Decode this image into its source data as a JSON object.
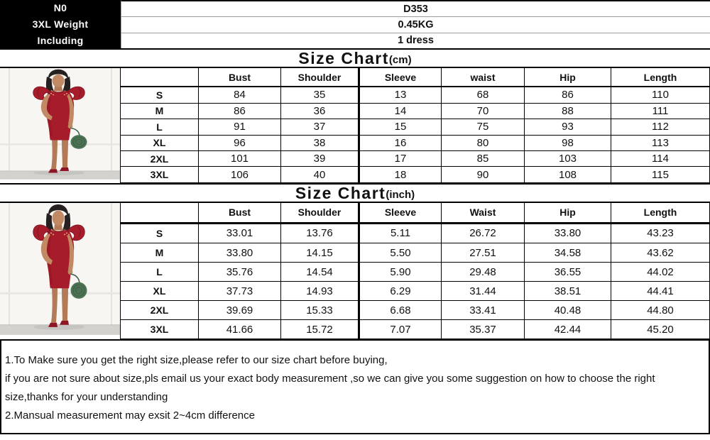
{
  "product_info": {
    "labels": [
      "N0",
      "3XL Weight",
      "Including"
    ],
    "values": [
      "D353",
      "0.45KG",
      "1 dress"
    ]
  },
  "size_chart_cm": {
    "title": "Size Chart",
    "unit_label": "(cm)",
    "columns": [
      "",
      "Bust",
      "Shoulder",
      "Sleeve",
      "waist",
      "Hip",
      "Length"
    ],
    "rows": [
      {
        "size": "S",
        "values": [
          "84",
          "35",
          "13",
          "68",
          "86",
          "110"
        ]
      },
      {
        "size": "M",
        "values": [
          "86",
          "36",
          "14",
          "70",
          "88",
          "111"
        ]
      },
      {
        "size": "L",
        "values": [
          "91",
          "37",
          "15",
          "75",
          "93",
          "112"
        ]
      },
      {
        "size": "XL",
        "values": [
          "96",
          "38",
          "16",
          "80",
          "98",
          "113"
        ]
      },
      {
        "size": "2XL",
        "values": [
          "101",
          "39",
          "17",
          "85",
          "103",
          "114"
        ]
      },
      {
        "size": "3XL",
        "values": [
          "106",
          "40",
          "18",
          "90",
          "108",
          "115"
        ]
      }
    ]
  },
  "size_chart_inch": {
    "title": "Size Chart",
    "unit_label": "(inch)",
    "columns": [
      "",
      "Bust",
      "Shoulder",
      "Sleeve",
      "Waist",
      "Hip",
      "Length"
    ],
    "rows": [
      {
        "size": "S",
        "values": [
          "33.01",
          "13.76",
          "5.11",
          "26.72",
          "33.80",
          "43.23"
        ]
      },
      {
        "size": "M",
        "values": [
          "33.80",
          "14.15",
          "5.50",
          "27.51",
          "34.58",
          "43.62"
        ]
      },
      {
        "size": "L",
        "values": [
          "35.76",
          "14.54",
          "5.90",
          "29.48",
          "36.55",
          "44.02"
        ]
      },
      {
        "size": "XL",
        "values": [
          "37.73",
          "14.93",
          "6.29",
          "31.44",
          "38.51",
          "44.41"
        ]
      },
      {
        "size": "2XL",
        "values": [
          "39.69",
          "15.33",
          "6.68",
          "33.41",
          "40.48",
          "44.80"
        ]
      },
      {
        "size": "3XL",
        "values": [
          "41.66",
          "15.72",
          "7.07",
          "35.37",
          "42.44",
          "45.20"
        ]
      }
    ]
  },
  "notes": {
    "lines": [
      "1.To Make sure you get the right size,please refer to our size chart before buying,",
      "if you are not sure about size,pls email us your exact body measurement ,so we can give you some suggestion on how to choose the right",
      "size,thanks for your understanding",
      "2.Mansual measurement may exsit 2~4cm difference"
    ]
  },
  "photo": {
    "description": "model wearing red ruffle-sleeve bodycon midi dress holding round green handbag",
    "colors": {
      "dress": "#a61c2b",
      "dress_shadow": "#8f1523",
      "bag": "#4c7354",
      "hair": "#262020",
      "skin": "#c28a64",
      "wall": "#f7f6f2",
      "floor": "#d3d2cf"
    }
  }
}
